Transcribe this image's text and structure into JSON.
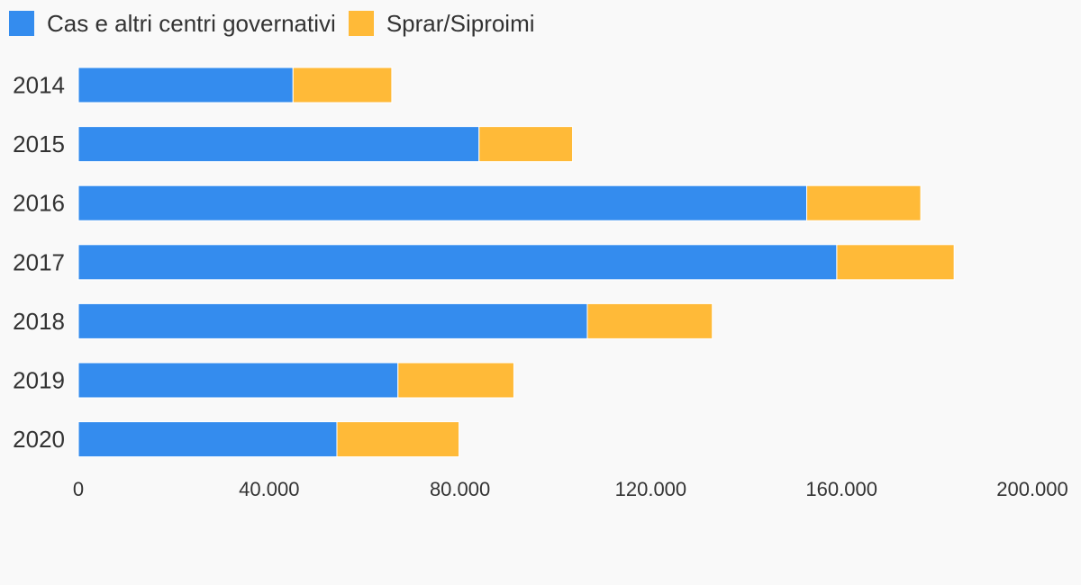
{
  "chart_data": {
    "type": "bar",
    "orientation": "horizontal",
    "stacked": true,
    "categories": [
      "2014",
      "2015",
      "2016",
      "2017",
      "2018",
      "2019",
      "2020"
    ],
    "series": [
      {
        "name": "Cas e altri centri governativi",
        "color": "#348cee",
        "values": [
          45000,
          84000,
          152700,
          159000,
          106700,
          67000,
          54200
        ]
      },
      {
        "name": "Sprar/Siproimi",
        "color": "#ffba38",
        "values": [
          20700,
          19600,
          23900,
          24600,
          26200,
          24300,
          25600
        ]
      }
    ],
    "x_ticks": [
      "0",
      "40.000",
      "80.000",
      "120.000",
      "160.000",
      "200.000"
    ],
    "xlim": [
      0,
      200000
    ],
    "grid": false,
    "legend_position": "top-left"
  }
}
